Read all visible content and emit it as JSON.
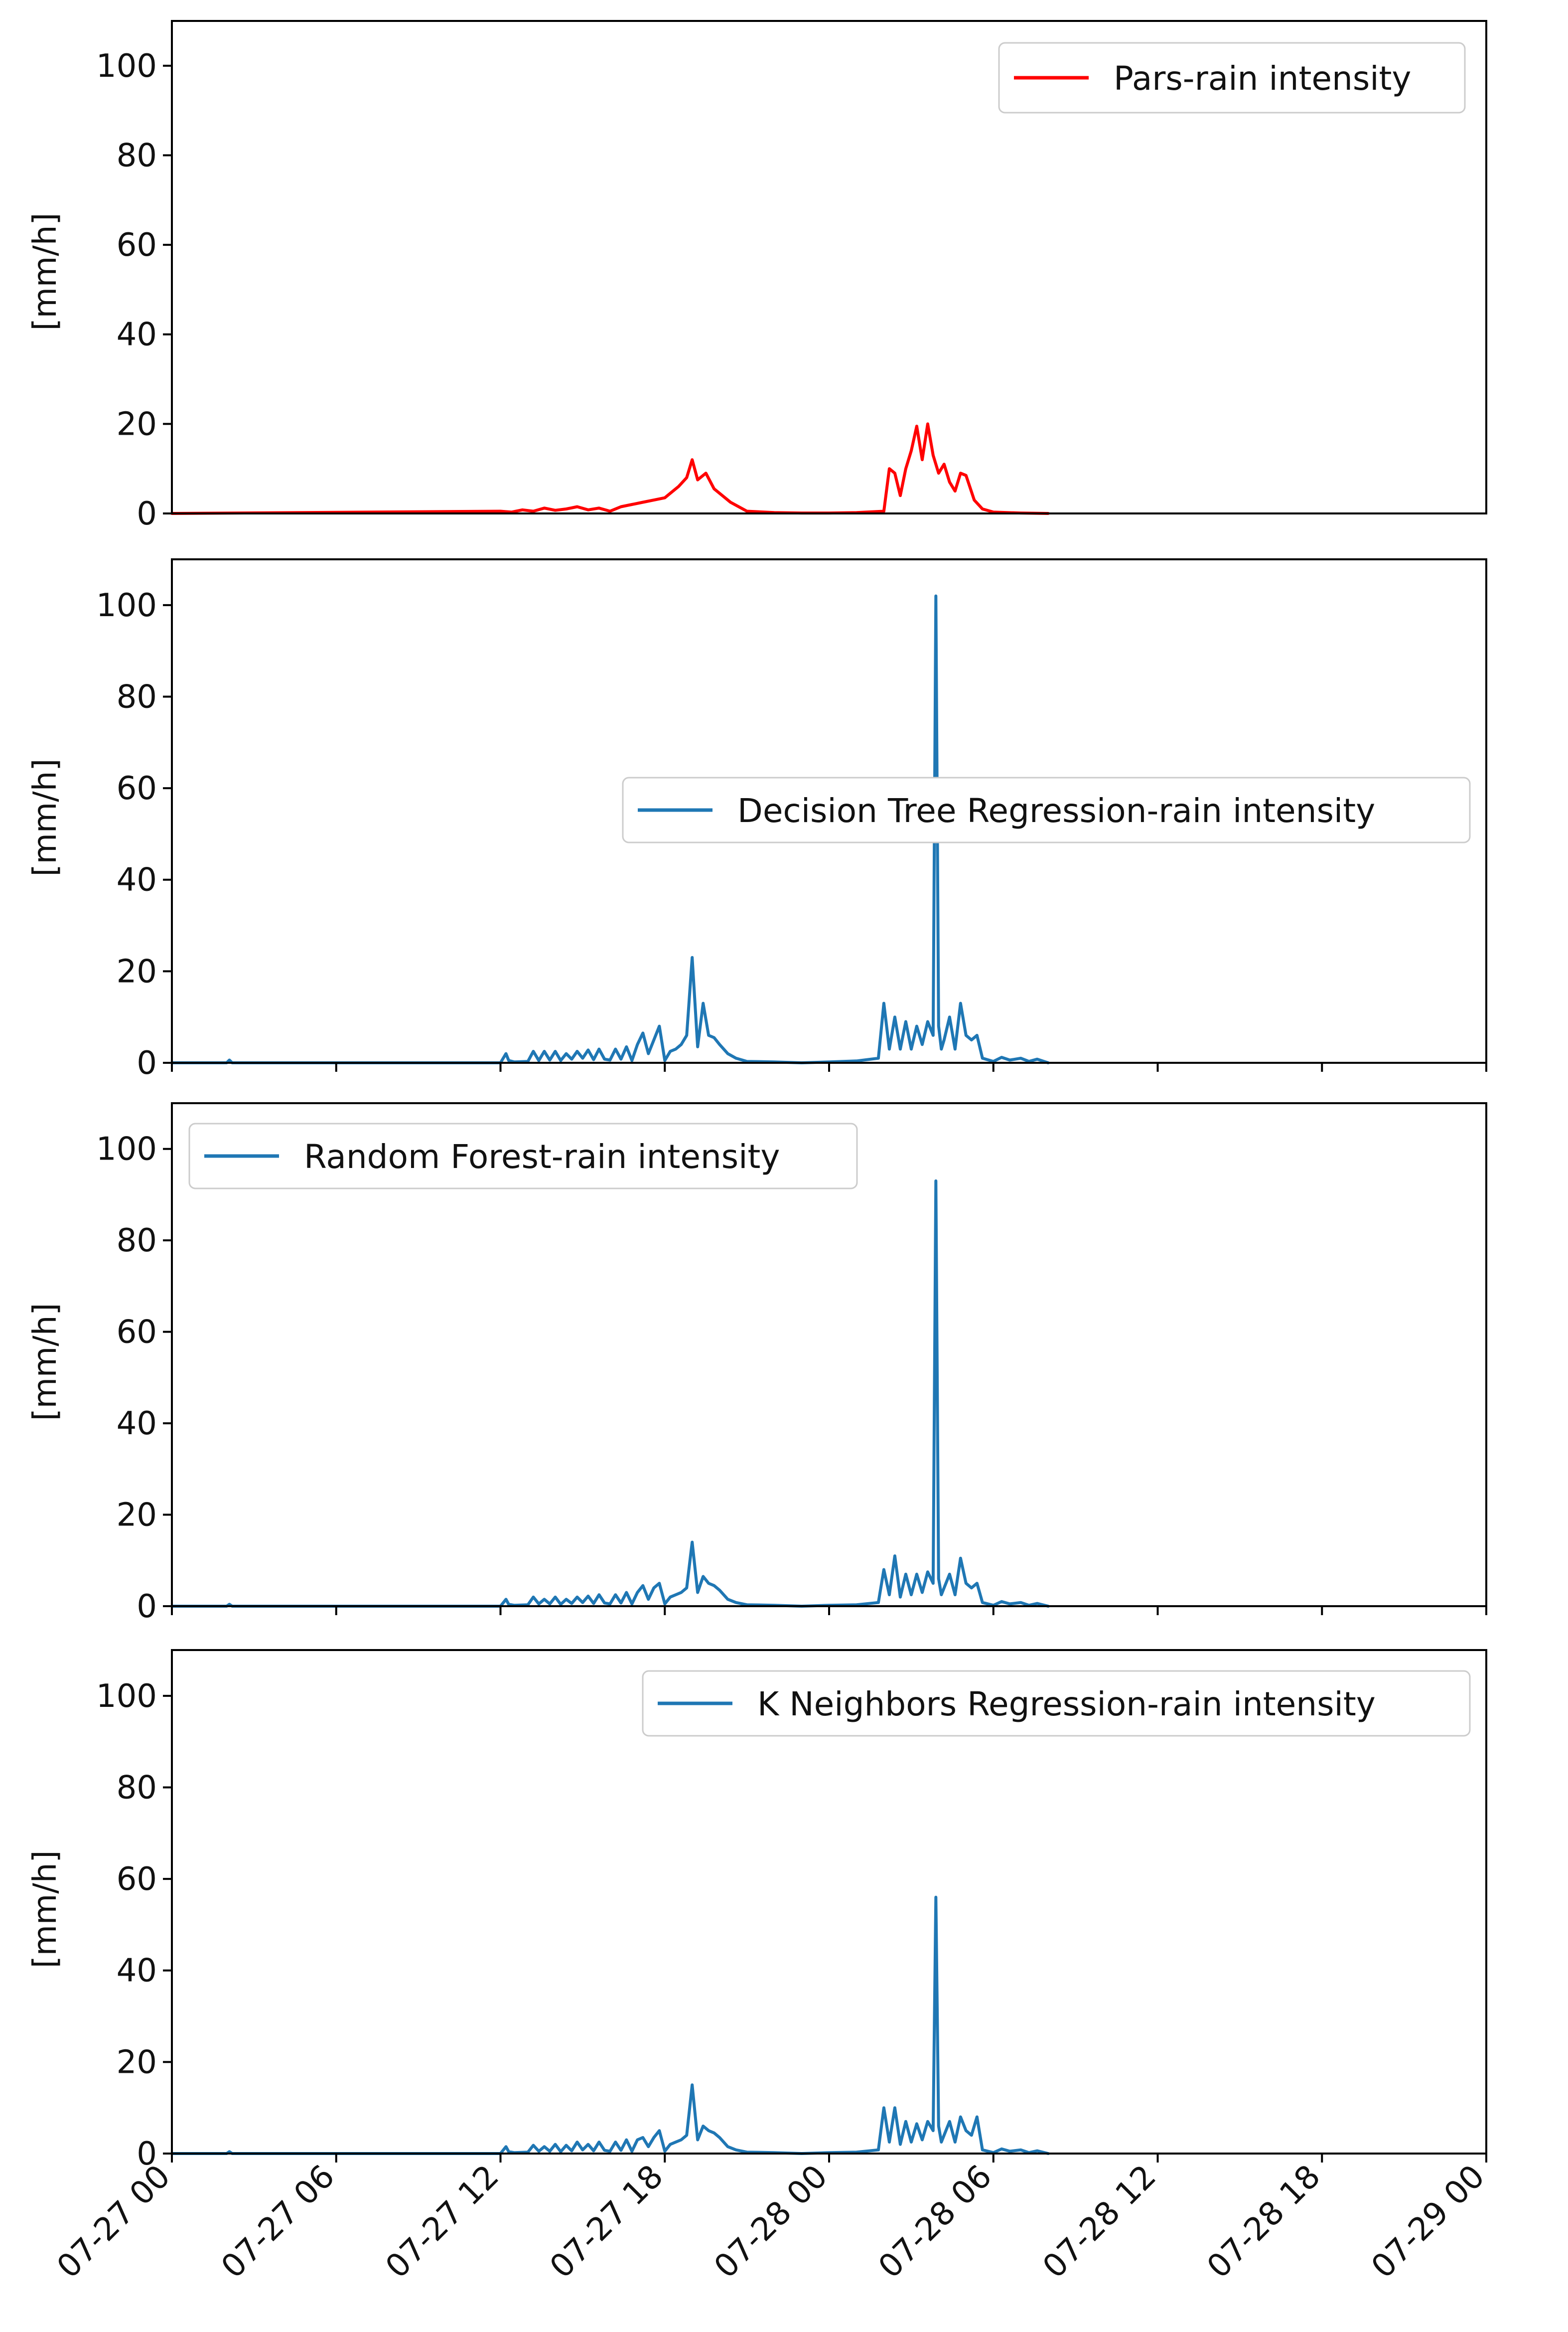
{
  "chart_data": {
    "type": "line",
    "x_unit": "hours since 07-27 00:00",
    "xlim": [
      0,
      48
    ],
    "ylim": [
      0,
      110
    ],
    "yticks": [
      0,
      20,
      40,
      60,
      80,
      100
    ],
    "ylabel": "[mm/h]",
    "x_tick_values": [
      0,
      6,
      12,
      18,
      24,
      30,
      36,
      42,
      48
    ],
    "x_tick_labels": [
      "07-27 00",
      "07-27 06",
      "07-27 12",
      "07-27 18",
      "07-28 00",
      "07-28 06",
      "07-28 12",
      "07-28 18",
      "07-29 00"
    ],
    "panels": [
      {
        "name": "pars",
        "legend": "Pars-rain intensity",
        "legend_loc": "upper right",
        "color": "#ff0000",
        "show_xticks": false,
        "x": [
          0,
          12.0,
          12.4,
          12.8,
          13.2,
          13.6,
          14.0,
          14.4,
          14.8,
          15.2,
          15.6,
          16.0,
          16.4,
          16.8,
          17.2,
          17.6,
          18.0,
          18.2,
          18.5,
          18.8,
          19.0,
          19.2,
          19.5,
          19.8,
          20.1,
          20.4,
          20.7,
          21.0,
          22.0,
          23.0,
          24.0,
          25.0,
          26.0,
          26.2,
          26.4,
          26.6,
          26.8,
          27.0,
          27.2,
          27.4,
          27.6,
          27.8,
          28.0,
          28.2,
          28.4,
          28.6,
          28.8,
          29.0,
          29.3,
          29.6,
          30.0,
          31.0,
          32.0
        ],
        "y": [
          0,
          0.5,
          0.3,
          0.8,
          0.5,
          1.2,
          0.7,
          1.0,
          1.5,
          0.8,
          1.2,
          0.5,
          1.5,
          2.0,
          2.5,
          3.0,
          3.5,
          4.5,
          6.0,
          8.0,
          12.0,
          7.5,
          9.0,
          5.5,
          4.0,
          2.5,
          1.5,
          0.5,
          0.2,
          0.1,
          0.1,
          0.2,
          0.5,
          10.0,
          9.0,
          4.0,
          10.0,
          14.0,
          19.5,
          12.0,
          20.0,
          13.0,
          9.0,
          11.0,
          7.0,
          5.0,
          9.0,
          8.5,
          3.0,
          1.0,
          0.3,
          0.1,
          0.0
        ]
      },
      {
        "name": "decision-tree",
        "legend": "Decision Tree Regression-rain intensity",
        "legend_loc": "center right",
        "color": "#1f77b4",
        "show_xticks": true,
        "x": [
          0,
          2.0,
          2.1,
          2.2,
          6.0,
          9.0,
          12.0,
          12.2,
          12.3,
          12.5,
          13.0,
          13.2,
          13.4,
          13.6,
          13.8,
          14.0,
          14.2,
          14.4,
          14.6,
          14.8,
          15.0,
          15.2,
          15.4,
          15.6,
          15.8,
          16.0,
          16.2,
          16.4,
          16.6,
          16.8,
          17.0,
          17.2,
          17.4,
          17.6,
          17.8,
          18.0,
          18.2,
          18.4,
          18.6,
          18.8,
          19.0,
          19.2,
          19.4,
          19.6,
          19.8,
          20.0,
          20.3,
          20.6,
          21.0,
          22.0,
          23.0,
          24.0,
          25.0,
          25.8,
          26.0,
          26.2,
          26.4,
          26.6,
          26.8,
          27.0,
          27.2,
          27.4,
          27.6,
          27.8,
          27.9,
          28.0,
          28.1,
          28.2,
          28.4,
          28.6,
          28.8,
          29.0,
          29.2,
          29.4,
          29.6,
          30.0,
          30.3,
          30.6,
          31.0,
          31.3,
          31.6,
          32.0
        ],
        "y": [
          0,
          0,
          0.6,
          0,
          0,
          0,
          0,
          2.0,
          0.5,
          0.2,
          0.3,
          2.5,
          0.5,
          2.5,
          0.6,
          2.5,
          0.5,
          2.0,
          0.8,
          2.5,
          1.0,
          2.8,
          0.7,
          3.0,
          0.8,
          0.6,
          3.0,
          0.8,
          3.5,
          0.5,
          4.0,
          6.5,
          2.0,
          5.0,
          8.0,
          0.5,
          2.5,
          3.0,
          4.0,
          6.0,
          23.0,
          3.5,
          13.0,
          6.0,
          5.5,
          4.0,
          2.0,
          1.0,
          0.3,
          0.2,
          0.0,
          0.2,
          0.4,
          1.0,
          13.0,
          3.0,
          10.0,
          3.0,
          9.0,
          3.0,
          8.0,
          4.0,
          9.0,
          6.0,
          102.0,
          8.0,
          3.0,
          5.0,
          10.0,
          3.0,
          13.0,
          6.0,
          5.0,
          6.0,
          1.0,
          0.3,
          1.2,
          0.6,
          1.0,
          0.3,
          0.8,
          0.0
        ]
      },
      {
        "name": "random-forest",
        "legend": "Random Forest-rain intensity",
        "legend_loc": "upper left",
        "color": "#1f77b4",
        "show_xticks": true,
        "x": [
          0,
          2.0,
          2.1,
          2.2,
          6.0,
          9.0,
          12.0,
          12.2,
          12.3,
          12.5,
          13.0,
          13.2,
          13.4,
          13.6,
          13.8,
          14.0,
          14.2,
          14.4,
          14.6,
          14.8,
          15.0,
          15.2,
          15.4,
          15.6,
          15.8,
          16.0,
          16.2,
          16.4,
          16.6,
          16.8,
          17.0,
          17.2,
          17.4,
          17.6,
          17.8,
          18.0,
          18.2,
          18.4,
          18.6,
          18.8,
          19.0,
          19.2,
          19.4,
          19.6,
          19.8,
          20.0,
          20.3,
          20.6,
          21.0,
          22.0,
          23.0,
          24.0,
          25.0,
          25.8,
          26.0,
          26.2,
          26.4,
          26.6,
          26.8,
          27.0,
          27.2,
          27.4,
          27.6,
          27.8,
          27.9,
          28.0,
          28.1,
          28.2,
          28.4,
          28.6,
          28.8,
          29.0,
          29.2,
          29.4,
          29.6,
          30.0,
          30.3,
          30.6,
          31.0,
          31.3,
          31.6,
          32.0
        ],
        "y": [
          0,
          0,
          0.4,
          0,
          0,
          0,
          0,
          1.5,
          0.4,
          0.2,
          0.3,
          2.0,
          0.5,
          1.5,
          0.5,
          2.0,
          0.4,
          1.5,
          0.6,
          2.0,
          0.8,
          2.2,
          0.6,
          2.5,
          0.7,
          0.5,
          2.5,
          0.7,
          3.0,
          0.5,
          3.0,
          4.5,
          1.5,
          4.0,
          5.0,
          0.5,
          2.0,
          2.5,
          3.0,
          4.0,
          14.0,
          3.0,
          6.5,
          5.0,
          4.5,
          3.5,
          1.5,
          0.8,
          0.3,
          0.2,
          0.0,
          0.2,
          0.3,
          0.8,
          8.0,
          2.5,
          11.0,
          2.0,
          7.0,
          2.5,
          7.0,
          3.0,
          7.5,
          5.0,
          93.0,
          6.0,
          2.5,
          4.0,
          7.0,
          2.5,
          10.5,
          5.0,
          4.0,
          5.0,
          0.8,
          0.2,
          1.0,
          0.5,
          0.8,
          0.2,
          0.6,
          0.0
        ]
      },
      {
        "name": "k-neighbors",
        "legend": "K Neighbors Regression-rain intensity",
        "legend_loc": "upper right",
        "color": "#1f77b4",
        "show_xticks": true,
        "x": [
          0,
          2.0,
          2.1,
          2.2,
          6.0,
          9.0,
          12.0,
          12.2,
          12.3,
          12.5,
          13.0,
          13.2,
          13.4,
          13.6,
          13.8,
          14.0,
          14.2,
          14.4,
          14.6,
          14.8,
          15.0,
          15.2,
          15.4,
          15.6,
          15.8,
          16.0,
          16.2,
          16.4,
          16.6,
          16.8,
          17.0,
          17.2,
          17.4,
          17.6,
          17.8,
          18.0,
          18.2,
          18.4,
          18.6,
          18.8,
          19.0,
          19.2,
          19.4,
          19.6,
          19.8,
          20.0,
          20.3,
          20.6,
          21.0,
          22.0,
          23.0,
          24.0,
          25.0,
          25.8,
          26.0,
          26.2,
          26.4,
          26.6,
          26.8,
          27.0,
          27.2,
          27.4,
          27.6,
          27.8,
          27.9,
          28.0,
          28.1,
          28.2,
          28.4,
          28.6,
          28.8,
          29.0,
          29.2,
          29.4,
          29.6,
          30.0,
          30.3,
          30.6,
          31.0,
          31.3,
          31.6,
          32.0
        ],
        "y": [
          0,
          0,
          0.4,
          0,
          0,
          0,
          0,
          1.5,
          0.4,
          0.2,
          0.3,
          1.8,
          0.5,
          1.5,
          0.5,
          2.0,
          0.4,
          1.8,
          0.6,
          2.5,
          0.8,
          2.0,
          0.6,
          2.5,
          0.7,
          0.5,
          2.5,
          0.7,
          3.0,
          0.5,
          3.0,
          3.5,
          1.5,
          3.5,
          5.0,
          0.5,
          2.0,
          2.5,
          3.0,
          4.0,
          15.0,
          3.0,
          6.0,
          5.0,
          4.5,
          3.5,
          1.5,
          0.8,
          0.3,
          0.2,
          0.0,
          0.2,
          0.3,
          0.8,
          10.0,
          2.5,
          10.0,
          2.0,
          7.0,
          2.5,
          6.5,
          3.0,
          7.0,
          5.0,
          56.0,
          6.0,
          2.5,
          4.0,
          7.0,
          2.5,
          8.0,
          5.0,
          4.0,
          8.0,
          0.8,
          0.2,
          1.0,
          0.5,
          0.8,
          0.2,
          0.6,
          0.0
        ]
      }
    ]
  }
}
